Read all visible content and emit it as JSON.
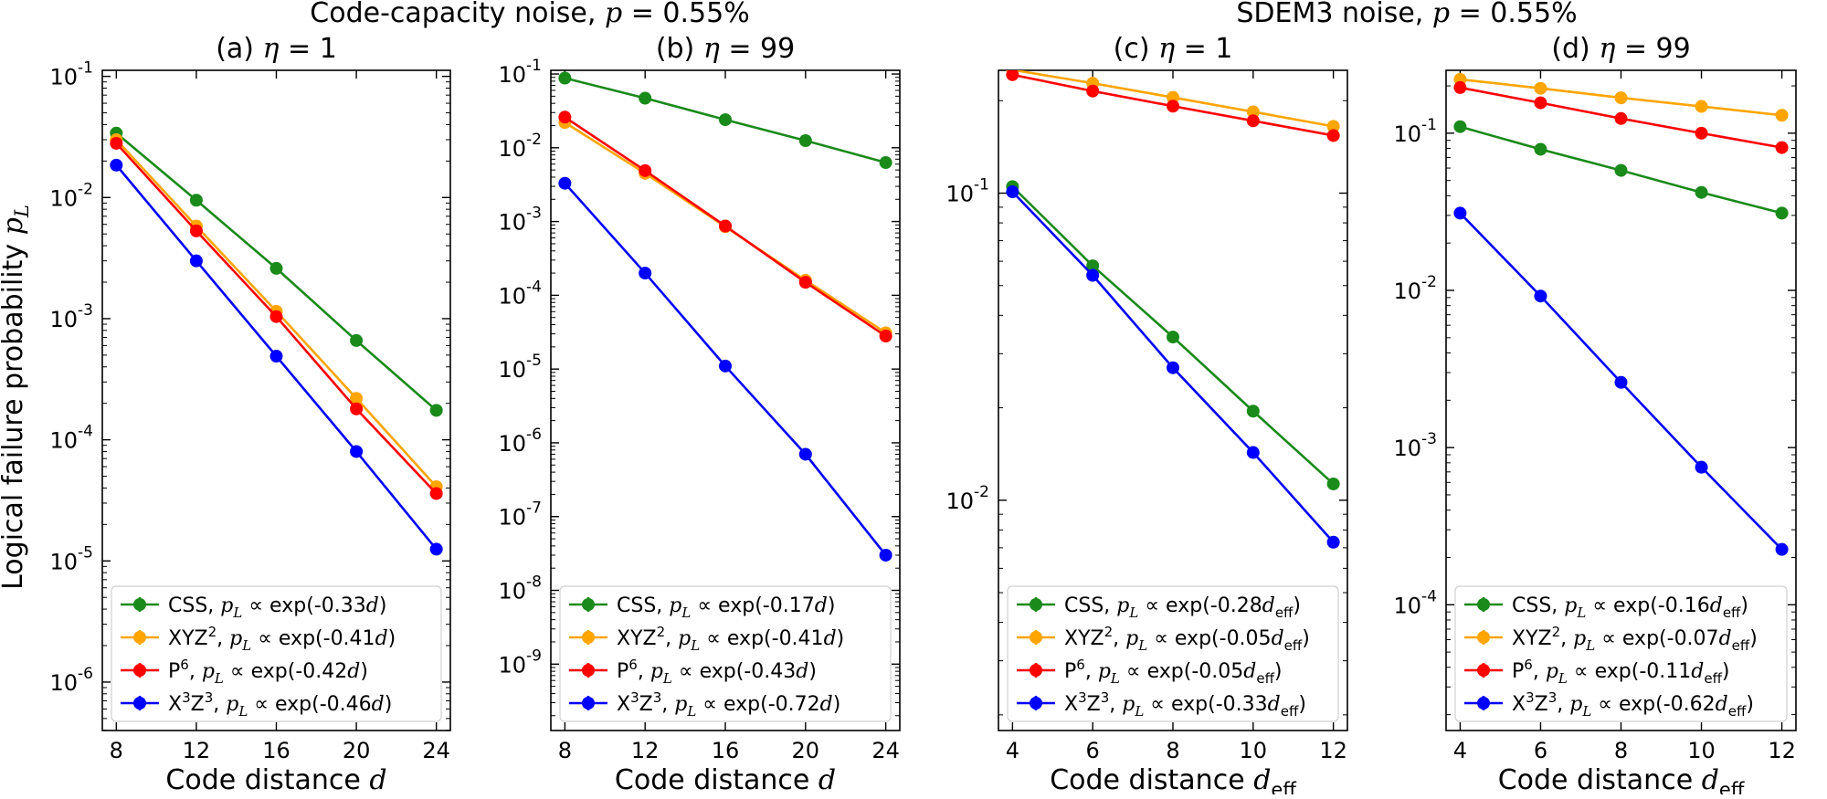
{
  "suptitles": [
    {
      "prefix": "Code-capacity noise, ",
      "var": "p",
      "suffix": " = 0.55%"
    },
    {
      "prefix": "SDEM3 noise, ",
      "var": "p",
      "suffix": " = 0.55%"
    }
  ],
  "ylabel": {
    "text": "Logical failure probability ",
    "var": "p",
    "sub": "L"
  },
  "colors": {
    "CSS": "#1a8a1a",
    "XYZ2": "#ffa500",
    "P6": "#ff0000",
    "X3Z3": "#0000ff"
  },
  "chart_data": [
    {
      "type": "line",
      "title": {
        "label": "(a) ",
        "var": "η",
        "rest": " = 1"
      },
      "xlabel": {
        "text": "Code distance ",
        "var": "d",
        "sub": ""
      },
      "yscale": "log",
      "xlim": [
        7.3,
        24.7
      ],
      "ylim_exp": [
        -6.4,
        -0.95
      ],
      "xticks": [
        8,
        12,
        16,
        20,
        24
      ],
      "yticks_exp": [
        -6,
        -5,
        -4,
        -3,
        -2,
        -1
      ],
      "x": [
        8,
        12,
        16,
        20,
        24
      ],
      "series": [
        {
          "key": "CSS",
          "values": [
            0.034,
            0.0095,
            0.0026,
            0.00066,
            0.000175
          ],
          "legend": {
            "name": "CSS",
            "sup": "",
            "name2": "",
            "sup2": "",
            "rate": "-0.33",
            "dvar": "d",
            "dsub": ""
          }
        },
        {
          "key": "XYZ2",
          "values": [
            0.03,
            0.0058,
            0.00115,
            0.00022,
            4.1e-05
          ],
          "legend": {
            "name": "XYZ",
            "sup": "2",
            "name2": "",
            "sup2": "",
            "rate": "-0.41",
            "dvar": "d",
            "dsub": ""
          }
        },
        {
          "key": "P6",
          "values": [
            0.028,
            0.0053,
            0.00104,
            0.00018,
            3.6e-05
          ],
          "legend": {
            "name": "P",
            "sup": "6",
            "name2": "",
            "sup2": "",
            "rate": "-0.42",
            "dvar": "d",
            "dsub": ""
          }
        },
        {
          "key": "X3Z3",
          "values": [
            0.0185,
            0.003,
            0.00049,
            8e-05,
            1.25e-05
          ],
          "legend": {
            "name": "X",
            "sup": "3",
            "name2": "Z",
            "sup2": "3",
            "rate": "-0.46",
            "dvar": "d",
            "dsub": ""
          }
        }
      ]
    },
    {
      "type": "line",
      "title": {
        "label": "(b) ",
        "var": "η",
        "rest": " = 99"
      },
      "xlabel": {
        "text": "Code distance ",
        "var": "d",
        "sub": ""
      },
      "yscale": "log",
      "xlim": [
        7.3,
        24.7
      ],
      "ylim_exp": [
        -9.9,
        -0.95
      ],
      "xticks": [
        8,
        12,
        16,
        20,
        24
      ],
      "yticks_exp": [
        -9,
        -8,
        -7,
        -6,
        -5,
        -4,
        -3,
        -2,
        -1
      ],
      "x": [
        8,
        12,
        16,
        20,
        24
      ],
      "series": [
        {
          "key": "CSS",
          "values": [
            0.088,
            0.047,
            0.024,
            0.0125,
            0.0063
          ],
          "legend": {
            "name": "CSS",
            "sup": "",
            "name2": "",
            "sup2": "",
            "rate": "-0.17",
            "dvar": "d",
            "dsub": ""
          }
        },
        {
          "key": "XYZ2",
          "values": [
            0.022,
            0.0045,
            0.00085,
            0.00016,
            3.1e-05
          ],
          "legend": {
            "name": "XYZ",
            "sup": "2",
            "name2": "",
            "sup2": "",
            "rate": "-0.41",
            "dvar": "d",
            "dsub": ""
          }
        },
        {
          "key": "P6",
          "values": [
            0.026,
            0.0049,
            0.00087,
            0.00015,
            2.8e-05
          ],
          "legend": {
            "name": "P",
            "sup": "6",
            "name2": "",
            "sup2": "",
            "rate": "-0.43",
            "dvar": "d",
            "dsub": ""
          }
        },
        {
          "key": "X3Z3",
          "values": [
            0.0033,
            0.0002,
            1.1e-05,
            7e-07,
            3e-08
          ],
          "legend": {
            "name": "X",
            "sup": "3",
            "name2": "Z",
            "sup2": "3",
            "rate": "-0.72",
            "dvar": "d",
            "dsub": ""
          }
        }
      ]
    },
    {
      "type": "line",
      "title": {
        "label": "(c) ",
        "var": "η",
        "rest": " = 1"
      },
      "xlabel": {
        "text": "Code distance ",
        "var": "d",
        "sub": "eff"
      },
      "yscale": "log",
      "xlim": [
        3.65,
        12.35
      ],
      "ylim_exp": [
        -2.75,
        -0.6
      ],
      "xticks": [
        4,
        6,
        8,
        10,
        12
      ],
      "yticks_exp": [
        -2,
        -1
      ],
      "x": [
        4,
        6,
        8,
        10,
        12
      ],
      "series": [
        {
          "key": "CSS",
          "values": [
            0.105,
            0.058,
            0.034,
            0.0195,
            0.0113
          ],
          "legend": {
            "name": "CSS",
            "sup": "",
            "name2": "",
            "sup2": "",
            "rate": "-0.28",
            "dvar": "d",
            "dsub": "eff"
          }
        },
        {
          "key": "XYZ2",
          "values": [
            0.252,
            0.228,
            0.205,
            0.184,
            0.165
          ],
          "legend": {
            "name": "XYZ",
            "sup": "2",
            "name2": "",
            "sup2": "",
            "rate": "-0.05",
            "dvar": "d",
            "dsub": "eff"
          }
        },
        {
          "key": "P6",
          "values": [
            0.243,
            0.215,
            0.192,
            0.172,
            0.154
          ],
          "legend": {
            "name": "P",
            "sup": "6",
            "name2": "",
            "sup2": "",
            "rate": "-0.05",
            "dvar": "d",
            "dsub": "eff"
          }
        },
        {
          "key": "X3Z3",
          "values": [
            0.101,
            0.054,
            0.027,
            0.0143,
            0.0073
          ],
          "legend": {
            "name": "X",
            "sup": "3",
            "name2": "Z",
            "sup2": "3",
            "rate": "-0.33",
            "dvar": "d",
            "dsub": "eff"
          }
        }
      ]
    },
    {
      "type": "line",
      "title": {
        "label": "(d) ",
        "var": "η",
        "rest": " = 99"
      },
      "xlabel": {
        "text": "Code distance ",
        "var": "d",
        "sub": "eff"
      },
      "yscale": "log",
      "xlim": [
        3.65,
        12.35
      ],
      "ylim_exp": [
        -4.8,
        -0.6
      ],
      "xticks": [
        4,
        6,
        8,
        10,
        12
      ],
      "yticks_exp": [
        -4,
        -3,
        -2,
        -1
      ],
      "x": [
        4,
        6,
        8,
        10,
        12
      ],
      "series": [
        {
          "key": "CSS",
          "values": [
            0.11,
            0.079,
            0.058,
            0.042,
            0.031
          ],
          "legend": {
            "name": "CSS",
            "sup": "",
            "name2": "",
            "sup2": "",
            "rate": "-0.16",
            "dvar": "d",
            "dsub": "eff"
          }
        },
        {
          "key": "XYZ2",
          "values": [
            0.22,
            0.193,
            0.168,
            0.148,
            0.13
          ],
          "legend": {
            "name": "XYZ",
            "sup": "2",
            "name2": "",
            "sup2": "",
            "rate": "-0.07",
            "dvar": "d",
            "dsub": "eff"
          }
        },
        {
          "key": "P6",
          "values": [
            0.195,
            0.156,
            0.124,
            0.1,
            0.081
          ],
          "legend": {
            "name": "P",
            "sup": "6",
            "name2": "",
            "sup2": "",
            "rate": "-0.11",
            "dvar": "d",
            "dsub": "eff"
          }
        },
        {
          "key": "X3Z3",
          "values": [
            0.031,
            0.0092,
            0.0026,
            0.00075,
            0.000225
          ],
          "legend": {
            "name": "X",
            "sup": "3",
            "name2": "Z",
            "sup2": "3",
            "rate": "-0.62",
            "dvar": "d",
            "dsub": "eff"
          }
        }
      ]
    }
  ]
}
